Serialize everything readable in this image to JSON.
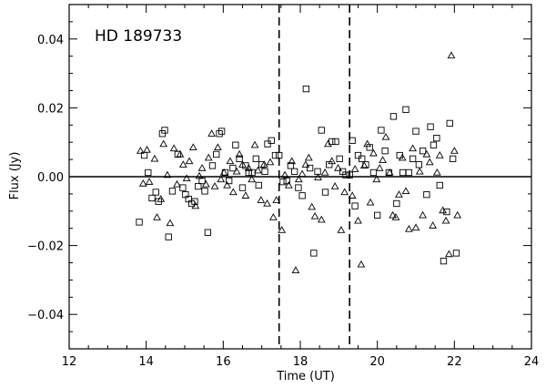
{
  "chart_data": {
    "type": "scatter",
    "title": "",
    "annotation": "HD  189733",
    "xlabel": "Time (UT)",
    "ylabel": "Flux (Jy)",
    "xlim": [
      12,
      24
    ],
    "ylim": [
      -0.05,
      0.05
    ],
    "x_ticks": [
      12,
      14,
      16,
      18,
      20,
      22,
      24
    ],
    "x_tick_labels": [
      "12",
      "14",
      "16",
      "18",
      "20",
      "22",
      "24"
    ],
    "y_ticks": [
      -0.04,
      -0.02,
      0.0,
      0.02,
      0.04
    ],
    "y_tick_labels": [
      "−0.04",
      "−0.02",
      "0.00",
      "0.02",
      "0.04"
    ],
    "grid": false,
    "reference_lines": {
      "horizontal_solid_y": 0.0,
      "vertical_dashed_x": [
        17.45,
        19.28
      ]
    },
    "series": [
      {
        "marker": "triangle",
        "points": [
          [
            13.85,
            0.0075
          ],
          [
            13.92,
            -0.002
          ],
          [
            14.02,
            0.0078
          ],
          [
            14.08,
            -0.0015
          ],
          [
            14.22,
            0.0052
          ],
          [
            14.28,
            -0.0118
          ],
          [
            14.38,
            -0.0065
          ],
          [
            14.45,
            0.0095
          ],
          [
            14.55,
            0.0005
          ],
          [
            14.62,
            -0.0135
          ],
          [
            14.72,
            0.0082
          ],
          [
            14.8,
            -0.0022
          ],
          [
            14.88,
            0.0065
          ],
          [
            14.96,
            0.0035
          ],
          [
            15.05,
            -0.0005
          ],
          [
            15.12,
            0.0045
          ],
          [
            15.22,
            0.0085
          ],
          [
            15.28,
            -0.0085
          ],
          [
            15.38,
            0.0002
          ],
          [
            15.45,
            0.0025
          ],
          [
            15.55,
            -0.0022
          ],
          [
            15.62,
            0.0055
          ],
          [
            15.7,
            0.0125
          ],
          [
            15.78,
            -0.0028
          ],
          [
            15.86,
            0.0085
          ],
          [
            15.94,
            -0.0008
          ],
          [
            16.02,
            0.0012
          ],
          [
            16.1,
            -0.0025
          ],
          [
            16.18,
            0.0045
          ],
          [
            16.26,
            -0.0045
          ],
          [
            16.35,
            0.0015
          ],
          [
            16.42,
            0.0065
          ],
          [
            16.5,
            0.0035
          ],
          [
            16.58,
            -0.0055
          ],
          [
            16.66,
            0.0025
          ],
          [
            16.74,
            -0.0008
          ],
          [
            16.82,
            0.0092
          ],
          [
            16.9,
            0.0018
          ],
          [
            16.98,
            -0.0068
          ],
          [
            17.06,
            0.0035
          ],
          [
            17.14,
            -0.0078
          ],
          [
            17.22,
            0.0042
          ],
          [
            17.3,
            -0.0118
          ],
          [
            17.38,
            -0.0068
          ],
          [
            17.52,
            -0.0155
          ],
          [
            17.6,
            0.0005
          ],
          [
            17.7,
            -0.0025
          ],
          [
            17.78,
            0.0045
          ],
          [
            17.88,
            -0.0272
          ],
          [
            17.96,
            -0.0008
          ],
          [
            18.05,
            0.0008
          ],
          [
            18.14,
            0.0035
          ],
          [
            18.22,
            0.0055
          ],
          [
            18.3,
            -0.0088
          ],
          [
            18.38,
            -0.0115
          ],
          [
            18.46,
            -0.0002
          ],
          [
            18.55,
            -0.0125
          ],
          [
            18.64,
            0.0012
          ],
          [
            18.72,
            0.0095
          ],
          [
            18.82,
            0.0045
          ],
          [
            18.9,
            -0.0028
          ],
          [
            18.98,
            0.0025
          ],
          [
            19.06,
            -0.0155
          ],
          [
            19.15,
            -0.0045
          ],
          [
            19.35,
            -0.0055
          ],
          [
            19.42,
            0.0022
          ],
          [
            19.5,
            -0.0128
          ],
          [
            19.58,
            -0.0255
          ],
          [
            19.66,
            0.0032
          ],
          [
            19.74,
            0.0095
          ],
          [
            19.82,
            -0.0075
          ],
          [
            19.9,
            0.0068
          ],
          [
            19.98,
            -0.0008
          ],
          [
            20.06,
            0.0025
          ],
          [
            20.14,
            0.0048
          ],
          [
            20.22,
            0.0115
          ],
          [
            20.32,
            0.0012
          ],
          [
            20.4,
            -0.0112
          ],
          [
            20.48,
            -0.0118
          ],
          [
            20.56,
            -0.0052
          ],
          [
            20.65,
            0.0055
          ],
          [
            20.74,
            -0.0042
          ],
          [
            20.82,
            -0.0152
          ],
          [
            20.92,
            0.0082
          ],
          [
            21.0,
            -0.0148
          ],
          [
            21.1,
            0.0015
          ],
          [
            21.18,
            -0.0112
          ],
          [
            21.28,
            0.0065
          ],
          [
            21.36,
            0.0042
          ],
          [
            21.44,
            -0.0142
          ],
          [
            21.55,
            0.0012
          ],
          [
            21.62,
            0.0062
          ],
          [
            21.7,
            -0.0098
          ],
          [
            21.78,
            -0.0128
          ],
          [
            21.86,
            -0.0225
          ],
          [
            21.92,
            0.0352
          ],
          [
            22.0,
            0.0075
          ],
          [
            22.08,
            -0.0112
          ]
        ]
      },
      {
        "marker": "square",
        "points": [
          [
            13.82,
            -0.0132
          ],
          [
            13.95,
            0.0062
          ],
          [
            14.05,
            0.0012
          ],
          [
            14.15,
            -0.0062
          ],
          [
            14.25,
            -0.0045
          ],
          [
            14.32,
            -0.0072
          ],
          [
            14.42,
            0.0125
          ],
          [
            14.48,
            0.0135
          ],
          [
            14.58,
            -0.0175
          ],
          [
            14.68,
            -0.0042
          ],
          [
            14.82,
            0.0065
          ],
          [
            14.95,
            -0.0032
          ],
          [
            15.02,
            -0.0052
          ],
          [
            15.1,
            -0.0065
          ],
          [
            15.18,
            -0.0078
          ],
          [
            15.26,
            -0.0072
          ],
          [
            15.35,
            -0.0028
          ],
          [
            15.45,
            -0.0012
          ],
          [
            15.52,
            -0.0042
          ],
          [
            15.6,
            -0.0162
          ],
          [
            15.72,
            0.0032
          ],
          [
            15.82,
            0.0065
          ],
          [
            15.9,
            0.0125
          ],
          [
            15.96,
            0.0132
          ],
          [
            16.05,
            0.0012
          ],
          [
            16.15,
            -0.0012
          ],
          [
            16.25,
            0.0025
          ],
          [
            16.32,
            0.0092
          ],
          [
            16.42,
            0.0052
          ],
          [
            16.5,
            -0.0032
          ],
          [
            16.58,
            0.0032
          ],
          [
            16.66,
            0.0012
          ],
          [
            16.75,
            0.0012
          ],
          [
            16.85,
            0.0052
          ],
          [
            16.92,
            -0.0025
          ],
          [
            17.0,
            0.0035
          ],
          [
            17.08,
            0.0015
          ],
          [
            17.15,
            0.0095
          ],
          [
            17.25,
            0.0105
          ],
          [
            17.35,
            0.0062
          ],
          [
            17.45,
            0.0062
          ],
          [
            17.55,
            -0.0015
          ],
          [
            17.65,
            -0.0012
          ],
          [
            17.75,
            0.0032
          ],
          [
            17.85,
            0.0015
          ],
          [
            17.95,
            -0.0032
          ],
          [
            18.05,
            -0.0055
          ],
          [
            18.15,
            0.0255
          ],
          [
            18.25,
            0.0025
          ],
          [
            18.35,
            -0.0222
          ],
          [
            18.45,
            0.0015
          ],
          [
            18.55,
            0.0135
          ],
          [
            18.65,
            -0.0045
          ],
          [
            18.75,
            0.0035
          ],
          [
            18.82,
            0.0102
          ],
          [
            18.92,
            0.0102
          ],
          [
            19.02,
            0.0052
          ],
          [
            19.1,
            0.0015
          ],
          [
            19.18,
            0.0005
          ],
          [
            19.28,
            0.0005
          ],
          [
            19.35,
            0.0105
          ],
          [
            19.42,
            -0.0085
          ],
          [
            19.5,
            0.0062
          ],
          [
            19.6,
            0.0052
          ],
          [
            19.7,
            0.0035
          ],
          [
            19.8,
            0.0085
          ],
          [
            19.9,
            0.0012
          ],
          [
            20.0,
            -0.0112
          ],
          [
            20.1,
            0.0135
          ],
          [
            20.2,
            0.0075
          ],
          [
            20.3,
            0.0012
          ],
          [
            20.42,
            0.0175
          ],
          [
            20.5,
            -0.0078
          ],
          [
            20.58,
            0.0062
          ],
          [
            20.66,
            0.0012
          ],
          [
            20.74,
            0.0195
          ],
          [
            20.82,
            0.0012
          ],
          [
            20.92,
            0.0052
          ],
          [
            21.0,
            0.0132
          ],
          [
            21.08,
            0.0035
          ],
          [
            21.18,
            0.0075
          ],
          [
            21.28,
            -0.0052
          ],
          [
            21.38,
            0.0145
          ],
          [
            21.46,
            0.0092
          ],
          [
            21.54,
            0.0112
          ],
          [
            21.62,
            -0.0025
          ],
          [
            21.72,
            -0.0245
          ],
          [
            21.8,
            -0.0102
          ],
          [
            21.88,
            0.0155
          ],
          [
            21.96,
            0.0052
          ],
          [
            22.05,
            -0.0222
          ]
        ]
      }
    ]
  }
}
